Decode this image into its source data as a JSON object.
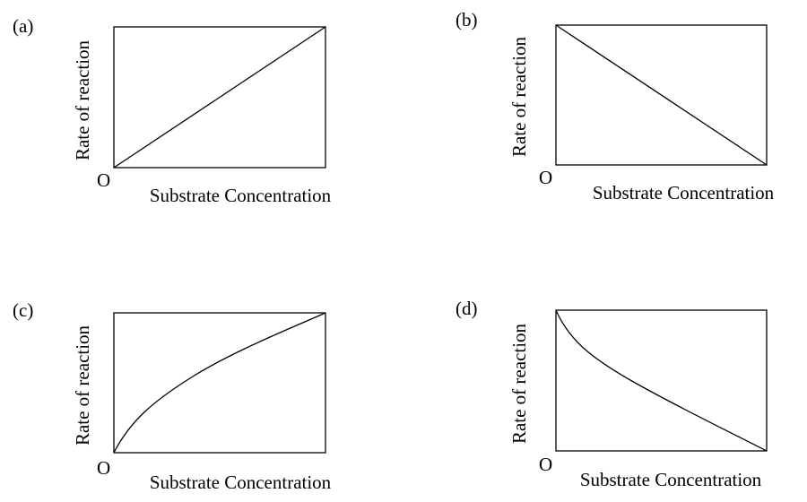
{
  "panels": [
    {
      "label": "(a)",
      "y_axis_label": "Rate of reaction",
      "origin_label": "O",
      "x_axis_label": "Substrate Concentration"
    },
    {
      "label": "(b)",
      "y_axis_label": "Rate of reaction",
      "origin_label": "O",
      "x_axis_label": "Substrate Concentration"
    },
    {
      "label": "(c)",
      "y_axis_label": "Rate of reaction",
      "origin_label": "O",
      "x_axis_label": "Substrate Concentration"
    },
    {
      "label": "(d)",
      "y_axis_label": "Rate of reaction",
      "origin_label": "O",
      "x_axis_label": "Substrate Concentration"
    }
  ]
}
